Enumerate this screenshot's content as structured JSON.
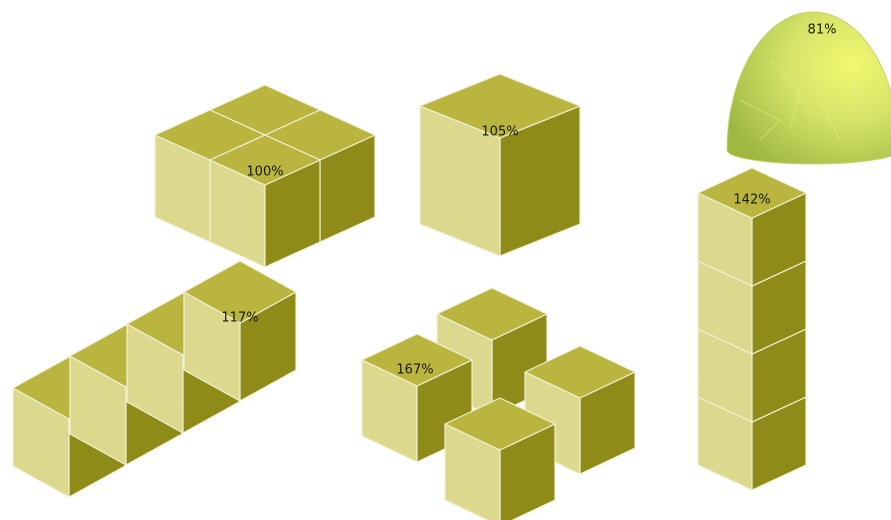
{
  "shapes": [
    {
      "label": "100%"
    },
    {
      "label": "105%"
    },
    {
      "label": "81%"
    },
    {
      "label": "117%"
    },
    {
      "label": "167%"
    },
    {
      "label": "142%"
    }
  ]
}
